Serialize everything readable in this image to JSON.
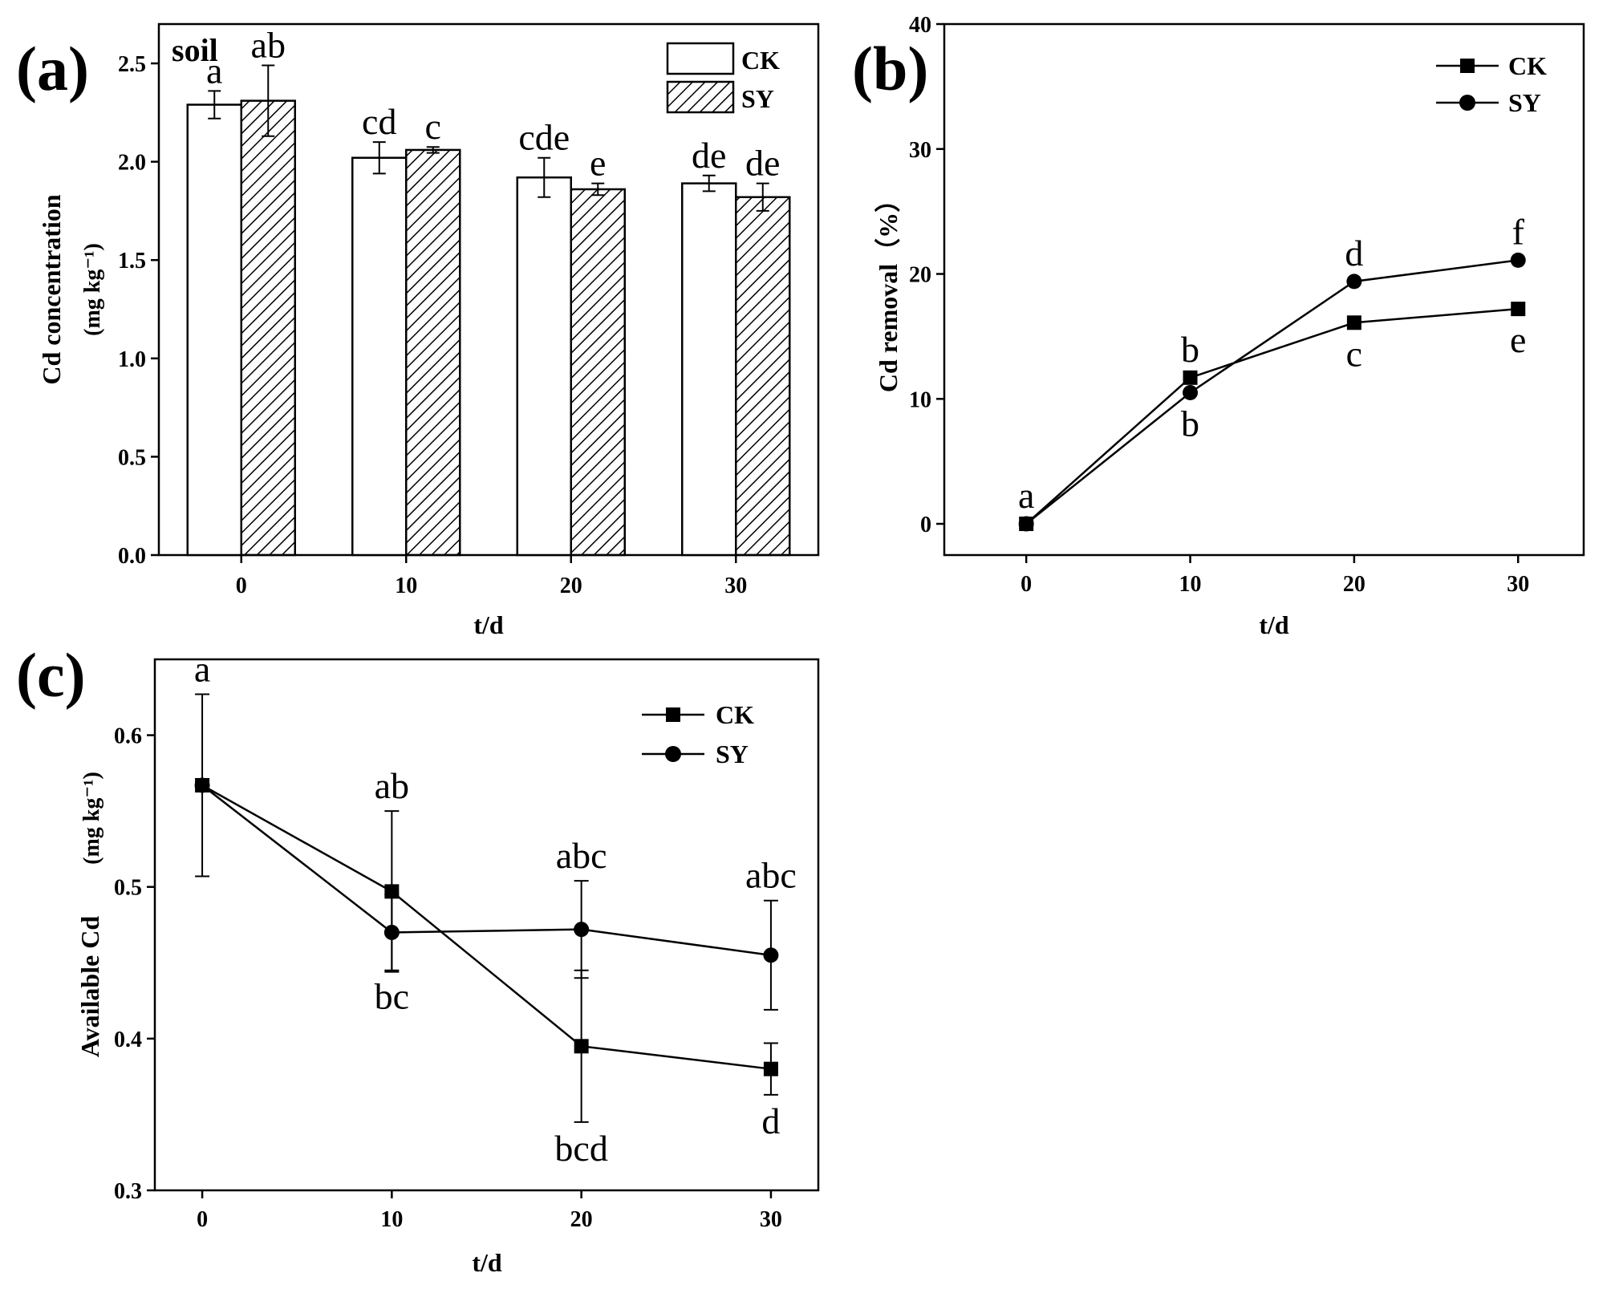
{
  "chart_data": [
    {
      "panel": "(a)",
      "type": "bar",
      "inset_label": "soil",
      "xlabel": "t/d",
      "ylabel": "Cd concentration",
      "ylabel_unit": "(mg kg⁻¹)",
      "ylim": [
        0,
        2.7
      ],
      "yticks": [
        "0.0",
        "0.5",
        "1.0",
        "1.5",
        "2.0",
        "2.5"
      ],
      "categories": [
        "0",
        "10",
        "20",
        "30"
      ],
      "legend": [
        "CK",
        "SY"
      ],
      "series": [
        {
          "name": "CK",
          "values": [
            2.29,
            2.02,
            1.92,
            1.89
          ],
          "errors": [
            0.07,
            0.08,
            0.1,
            0.04
          ],
          "letters": [
            "a",
            "cd",
            "cde",
            "de"
          ]
        },
        {
          "name": "SY",
          "values": [
            2.31,
            2.06,
            1.86,
            1.82
          ],
          "errors": [
            0.18,
            0.015,
            0.03,
            0.07
          ],
          "letters": [
            "ab",
            "c",
            "e",
            "de"
          ]
        }
      ]
    },
    {
      "panel": "(b)",
      "type": "line",
      "xlabel": "t/d",
      "ylabel": "Cd removal（%）",
      "xlim": [
        -5,
        34
      ],
      "ylim": [
        -2.5,
        40
      ],
      "xticks": [
        0,
        10,
        20,
        30
      ],
      "yticks": [
        0,
        10,
        20,
        30,
        40
      ],
      "legend": [
        "CK",
        "SY"
      ],
      "series": [
        {
          "name": "CK",
          "marker": "square",
          "x": [
            0,
            10,
            20,
            30
          ],
          "y": [
            0,
            11.7,
            16.1,
            17.2
          ],
          "letters": [
            "a",
            "b",
            "c",
            "e"
          ],
          "letter_pos": [
            "above",
            "above",
            "below",
            "below"
          ]
        },
        {
          "name": "SY",
          "marker": "circle",
          "x": [
            0,
            10,
            20,
            30
          ],
          "y": [
            0,
            10.5,
            19.4,
            21.1
          ],
          "letters": [
            "",
            "b",
            "d",
            "f"
          ],
          "letter_pos": [
            "above",
            "below",
            "above",
            "above"
          ]
        }
      ]
    },
    {
      "panel": "(c)",
      "type": "line",
      "xlabel": "t/d",
      "ylabel": "Available Cd",
      "ylabel_unit": "(mg kg⁻¹)",
      "xlim": [
        -2.5,
        32.5
      ],
      "ylim": [
        0.3,
        0.65
      ],
      "xticks": [
        0,
        10,
        20,
        30
      ],
      "yticks": [
        "0.3",
        "0.4",
        "0.5",
        "0.6"
      ],
      "legend": [
        "CK",
        "SY"
      ],
      "series": [
        {
          "name": "CK",
          "marker": "square",
          "x": [
            0,
            10,
            20,
            30
          ],
          "y": [
            0.567,
            0.497,
            0.395,
            0.38
          ],
          "errors": [
            0.06,
            0.053,
            0.05,
            0.017
          ],
          "letters": [
            "a",
            "ab",
            "bcd",
            "d"
          ],
          "letter_pos": [
            "above",
            "above",
            "below",
            "below"
          ]
        },
        {
          "name": "SY",
          "marker": "circle",
          "x": [
            0,
            10,
            20,
            30
          ],
          "y": [
            0.567,
            0.47,
            0.472,
            0.455
          ],
          "errors": [
            0.0,
            0.025,
            0.032,
            0.036
          ],
          "letters": [
            "",
            "bc",
            "abc",
            "abc"
          ],
          "letter_pos": [
            "above",
            "below",
            "above",
            "above"
          ]
        }
      ]
    }
  ]
}
